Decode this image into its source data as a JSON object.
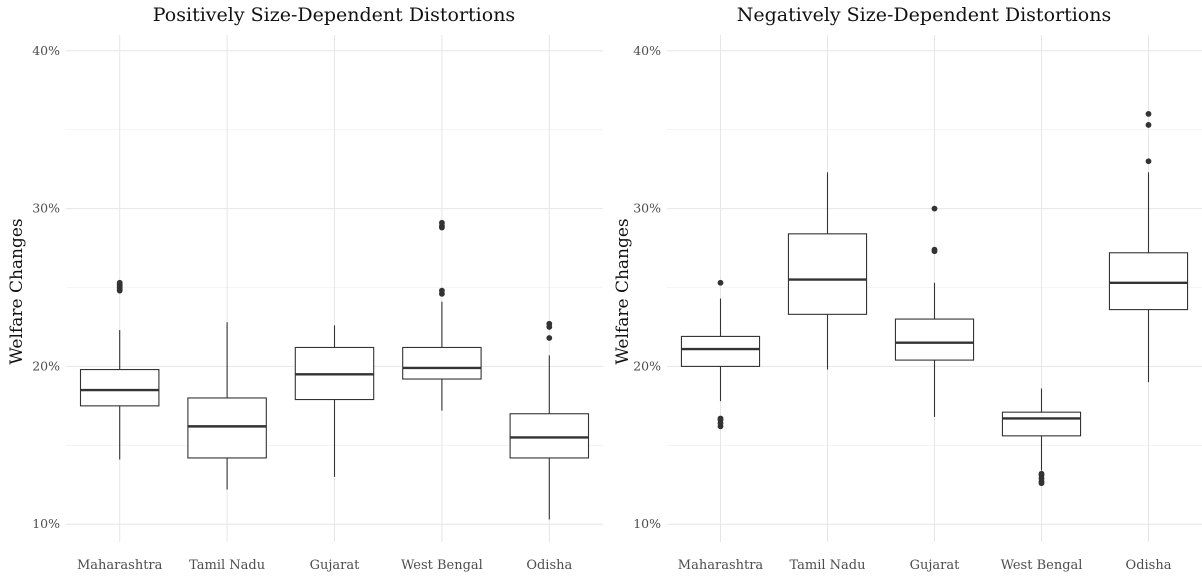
{
  "chart_data": [
    {
      "type": "boxplot",
      "title": "Positively Size-Dependent Distortions",
      "ylabel": "Welfare Changes",
      "xlabel": "",
      "ylim": [
        9,
        41
      ],
      "yticks": [
        10,
        20,
        30,
        40
      ],
      "ytick_labels": [
        "10%",
        "20%",
        "30%",
        "40%"
      ],
      "grid": true,
      "categories": [
        "Maharashtra",
        "Tamil Nadu",
        "Gujarat",
        "West Bengal",
        "Odisha"
      ],
      "boxes": [
        {
          "category": "Maharashtra",
          "whisker_low": 14.1,
          "q1": 17.5,
          "median": 18.5,
          "q3": 19.8,
          "whisker_high": 22.3,
          "outliers": [
            24.8,
            24.9,
            25.0,
            25.1,
            25.2,
            25.3
          ]
        },
        {
          "category": "Tamil Nadu",
          "whisker_low": 12.2,
          "q1": 14.2,
          "median": 16.2,
          "q3": 18.0,
          "whisker_high": 22.8,
          "outliers": []
        },
        {
          "category": "Gujarat",
          "whisker_low": 13.0,
          "q1": 17.9,
          "median": 19.5,
          "q3": 21.2,
          "whisker_high": 22.6,
          "outliers": []
        },
        {
          "category": "West Bengal",
          "whisker_low": 17.2,
          "q1": 19.2,
          "median": 19.9,
          "q3": 21.2,
          "whisker_high": 24.1,
          "outliers": [
            24.6,
            24.8,
            28.8,
            28.9,
            29.1
          ]
        },
        {
          "category": "Odisha",
          "whisker_low": 10.3,
          "q1": 14.2,
          "median": 15.5,
          "q3": 17.0,
          "whisker_high": 20.7,
          "outliers": [
            21.8,
            22.5,
            22.7
          ]
        }
      ]
    },
    {
      "type": "boxplot",
      "title": "Negatively Size-Dependent Distortions",
      "ylabel": "Welfare Changes",
      "xlabel": "",
      "ylim": [
        9,
        41
      ],
      "yticks": [
        10,
        20,
        30,
        40
      ],
      "ytick_labels": [
        "10%",
        "20%",
        "30%",
        "40%"
      ],
      "grid": true,
      "categories": [
        "Maharashtra",
        "Tamil Nadu",
        "Gujarat",
        "West Bengal",
        "Odisha"
      ],
      "boxes": [
        {
          "category": "Maharashtra",
          "whisker_low": 17.8,
          "q1": 20.0,
          "median": 21.1,
          "q3": 21.9,
          "whisker_high": 24.3,
          "outliers": [
            16.2,
            16.4,
            16.6,
            16.7,
            25.3
          ]
        },
        {
          "category": "Tamil Nadu",
          "whisker_low": 19.8,
          "q1": 23.3,
          "median": 25.5,
          "q3": 28.4,
          "whisker_high": 32.3,
          "outliers": []
        },
        {
          "category": "Gujarat",
          "whisker_low": 16.8,
          "q1": 20.4,
          "median": 21.5,
          "q3": 23.0,
          "whisker_high": 25.3,
          "outliers": [
            27.3,
            27.4,
            30.0
          ]
        },
        {
          "category": "West Bengal",
          "whisker_low": 13.4,
          "q1": 15.6,
          "median": 16.7,
          "q3": 17.1,
          "whisker_high": 18.6,
          "outliers": [
            12.6,
            12.7,
            12.9,
            13.1,
            13.2
          ]
        },
        {
          "category": "Odisha",
          "whisker_low": 19.0,
          "q1": 23.6,
          "median": 25.3,
          "q3": 27.2,
          "whisker_high": 32.3,
          "outliers": [
            33.0,
            35.3,
            36.0
          ]
        }
      ]
    }
  ]
}
